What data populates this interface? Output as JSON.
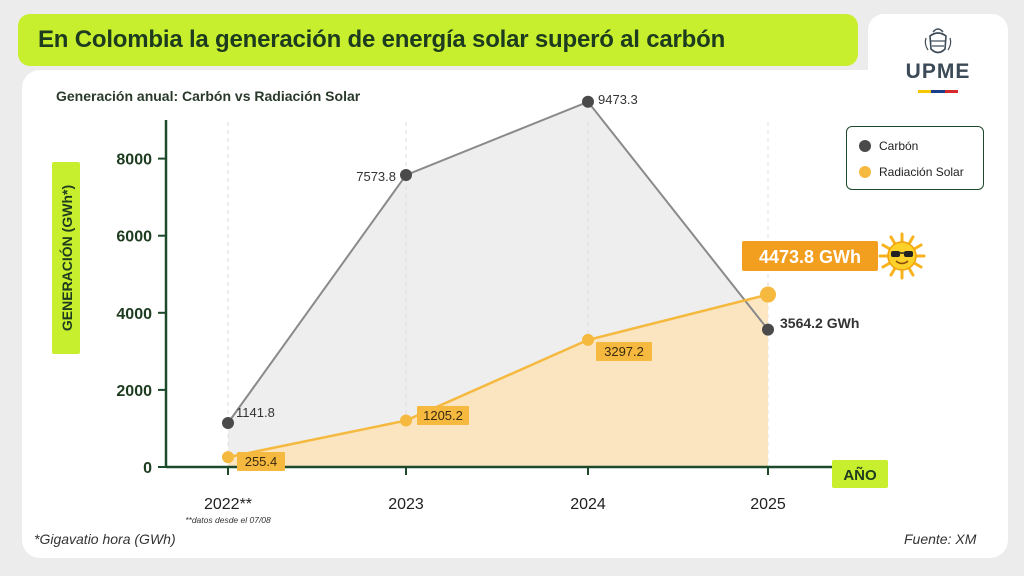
{
  "header": {
    "title": "En Colombia la generación de energía solar superó al carbón",
    "subtitle": "Generación anual: Carbón vs Radiación Solar"
  },
  "logo": {
    "text": "UPME"
  },
  "footer": {
    "note": "*Gigavatio hora (GWh)",
    "source": "Fuente: XM"
  },
  "colors": {
    "banner": "#c8ef2e",
    "coal": "#4a4a4a",
    "solar": "#f5b93f",
    "highlight": "#f29e1f",
    "axis": "#1d4a2a"
  },
  "chart_data": {
    "type": "line",
    "title": "Generación anual: Carbón vs Radiación Solar",
    "xlabel": "AÑO",
    "ylabel": "GENERACIÓN (GWh*)",
    "categories": [
      "2022**",
      "2023",
      "2024",
      "2025"
    ],
    "category_note": "**datos desde el 07/08",
    "ylim": [
      0,
      9000
    ],
    "yticks": [
      0,
      2000,
      4000,
      6000,
      8000
    ],
    "grid": "vertical dashed",
    "legend_position": "top-right",
    "series": [
      {
        "name": "Carbón",
        "values": [
          1141.8,
          7573.8,
          9473.3,
          3564.2
        ],
        "labels": [
          "1141.8",
          "7573.8",
          "9473.3",
          "3564.2 GWh"
        ],
        "color": "#4a4a4a"
      },
      {
        "name": "Radiación Solar",
        "values": [
          255.4,
          1205.2,
          3297.2,
          4473.8
        ],
        "labels": [
          "255.4",
          "1205.2",
          "3297.2",
          "4473.8 GWh"
        ],
        "color": "#f5b93f"
      }
    ]
  }
}
